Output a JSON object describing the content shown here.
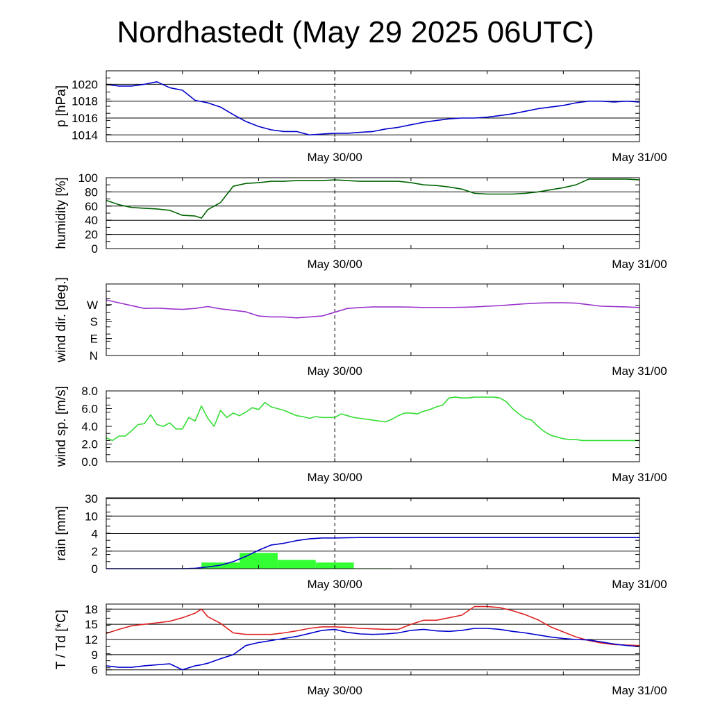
{
  "title": "Nordhastedt (May 29 2025 06UTC)",
  "chart_data": [
    {
      "type": "line",
      "ylabel": "p [hPa]",
      "ylim": [
        1013.2,
        1021.6
      ],
      "yticks": [
        1014,
        1016,
        1018,
        1020
      ],
      "ytick_labels": [
        "1014",
        "1016",
        "1018",
        "1020"
      ],
      "grid": true,
      "x": [
        0,
        1,
        2,
        3,
        4,
        5,
        6,
        7,
        8,
        9,
        10,
        11,
        12,
        13,
        14,
        15,
        16,
        17,
        18,
        19,
        20,
        21,
        22,
        23,
        24,
        25,
        26,
        27,
        28,
        29,
        30,
        31,
        32,
        33,
        34,
        35,
        36,
        37,
        38,
        39,
        40,
        41,
        42
      ],
      "series": [
        {
          "color": "#0000cc",
          "values": [
            1020.0,
            1019.8,
            1019.8,
            1020.0,
            1020.3,
            1019.6,
            1019.3,
            1018.1,
            1017.8,
            1017.3,
            1016.4,
            1015.6,
            1015.0,
            1014.6,
            1014.4,
            1014.4,
            1014.0,
            1014.1,
            1014.2,
            1014.2,
            1014.3,
            1014.4,
            1014.7,
            1014.9,
            1015.2,
            1015.5,
            1015.7,
            1015.9,
            1016.0,
            1016.0,
            1016.1,
            1016.3,
            1016.5,
            1016.8,
            1017.1,
            1017.3,
            1017.5,
            1017.8,
            1018.0,
            1018.0,
            1017.9,
            1018.0,
            1017.9
          ]
        }
      ],
      "x_ticks": [
        {
          "x": 18,
          "label": "May 30/00"
        },
        {
          "x": 42,
          "label": "May 31/00"
        }
      ],
      "vline_x": 18
    },
    {
      "type": "line",
      "ylabel": "humidity [%]",
      "ylim": [
        0,
        100
      ],
      "yticks": [
        0,
        20,
        40,
        60,
        80,
        100
      ],
      "ytick_labels": [
        "0",
        "20",
        "40",
        "60",
        "80",
        "100"
      ],
      "grid": true,
      "x": [
        0,
        1,
        2,
        3,
        4,
        5,
        6,
        7,
        7.5,
        8,
        9,
        10,
        11,
        12,
        13,
        14,
        15,
        16,
        17,
        18,
        19,
        20,
        21,
        22,
        23,
        24,
        25,
        26,
        27,
        28,
        29,
        30,
        31,
        32,
        33,
        34,
        35,
        36,
        37,
        38,
        39,
        40,
        41,
        42
      ],
      "series": [
        {
          "color": "#006400",
          "values": [
            68,
            62,
            58,
            57,
            56,
            54,
            47,
            46,
            43,
            55,
            65,
            88,
            92,
            93,
            95,
            95,
            96,
            96,
            96,
            97,
            96,
            95,
            95,
            95,
            95,
            93,
            90,
            89,
            87,
            84,
            78,
            77,
            77,
            77,
            78,
            80,
            83,
            86,
            90,
            98,
            98,
            98,
            98,
            97
          ]
        }
      ],
      "x_ticks": [
        {
          "x": 18,
          "label": "May 30/00"
        },
        {
          "x": 42,
          "label": "May 31/00"
        }
      ],
      "vline_x": 18
    },
    {
      "type": "line",
      "ylabel": "wind dir. [deg.]",
      "ylim": [
        0,
        380
      ],
      "yticks": [
        0,
        90,
        180,
        270
      ],
      "ytick_labels": [
        "N",
        "E",
        "S",
        "W"
      ],
      "grid": false,
      "x": [
        0,
        1,
        2,
        3,
        4,
        5,
        6,
        7,
        8,
        9,
        10,
        11,
        12,
        13,
        14,
        15,
        16,
        17,
        18,
        19,
        20,
        21,
        22,
        23,
        24,
        25,
        26,
        27,
        28,
        29,
        30,
        31,
        32,
        33,
        34,
        35,
        36,
        37,
        38,
        39,
        40,
        41,
        42
      ],
      "series": [
        {
          "color": "#9932cc",
          "values": [
            295,
            280,
            265,
            250,
            252,
            248,
            245,
            250,
            260,
            248,
            240,
            232,
            210,
            205,
            205,
            200,
            205,
            210,
            230,
            250,
            255,
            258,
            258,
            258,
            257,
            255,
            255,
            255,
            256,
            258,
            262,
            265,
            270,
            275,
            278,
            280,
            280,
            278,
            270,
            262,
            260,
            258,
            255
          ]
        }
      ],
      "x_ticks": [
        {
          "x": 18,
          "label": "May 30/00"
        },
        {
          "x": 42,
          "label": "May 31/00"
        }
      ],
      "vline_x": 18
    },
    {
      "type": "line",
      "ylabel": "wind sp. [m/s]",
      "ylim": [
        0,
        8
      ],
      "yticks": [
        0,
        2,
        4,
        6,
        8
      ],
      "ytick_labels": [
        "0.0",
        "2.0",
        "4.0",
        "6.0",
        "8.0"
      ],
      "grid": false,
      "x": [
        0,
        0.5,
        1,
        1.5,
        2,
        2.5,
        3,
        3.5,
        4,
        4.5,
        5,
        5.5,
        6,
        6.5,
        7,
        7.5,
        8,
        8.5,
        9,
        9.5,
        10,
        10.5,
        11,
        11.5,
        12,
        12.5,
        13,
        13.5,
        14,
        14.5,
        15,
        15.5,
        16,
        16.5,
        17,
        17.5,
        18,
        18.5,
        19,
        19.5,
        20,
        20.5,
        21,
        21.5,
        22,
        22.5,
        23,
        23.5,
        24,
        24.5,
        25,
        25.5,
        26,
        26.5,
        27,
        27.5,
        28,
        28.5,
        29,
        29.5,
        30,
        30.5,
        31,
        31.5,
        32,
        32.5,
        33,
        33.5,
        34,
        34.5,
        35,
        35.5,
        36,
        36.5,
        37,
        37.5,
        38,
        38.5,
        39,
        39.5,
        40,
        40.5,
        41,
        41.5,
        42
      ],
      "series": [
        {
          "color": "#33dd33",
          "values": [
            2.7,
            2.4,
            2.9,
            2.9,
            3.5,
            4.2,
            4.3,
            5.3,
            4.2,
            4.0,
            4.4,
            3.7,
            3.7,
            5.0,
            4.6,
            6.3,
            4.9,
            4.0,
            5.8,
            5.0,
            5.5,
            5.2,
            5.6,
            6.1,
            5.9,
            6.7,
            6.2,
            6.0,
            5.8,
            5.5,
            5.2,
            5.1,
            4.9,
            5.1,
            5.0,
            5.0,
            5.0,
            5.4,
            5.2,
            5.0,
            4.9,
            4.8,
            4.7,
            4.6,
            4.5,
            4.8,
            5.2,
            5.5,
            5.5,
            5.4,
            5.7,
            5.9,
            6.2,
            6.4,
            7.2,
            7.3,
            7.2,
            7.2,
            7.3,
            7.3,
            7.3,
            7.3,
            7.2,
            6.8,
            6.0,
            5.4,
            4.9,
            4.7,
            4.0,
            3.4,
            3.0,
            2.8,
            2.6,
            2.5,
            2.5,
            2.4,
            2.4,
            2.4,
            2.4,
            2.4,
            2.4,
            2.4,
            2.4,
            2.4,
            2.4
          ]
        }
      ],
      "x_ticks": [
        {
          "x": 18,
          "label": "May 30/00"
        },
        {
          "x": 42,
          "label": "May 31/00"
        }
      ],
      "vline_x": 18
    },
    {
      "type": "bar+line",
      "ylabel": "rain [mm]",
      "yticks": [
        0,
        2,
        4,
        10,
        30
      ],
      "ytick_labels": [
        "0",
        "2",
        "4",
        "10",
        "30"
      ],
      "ylim": [
        0,
        30
      ],
      "grid": true,
      "bars": [
        {
          "x0": 7.5,
          "x1": 10.5,
          "value": 0.7,
          "color": "#33ff33"
        },
        {
          "x0": 10.5,
          "x1": 13.5,
          "value": 1.8,
          "color": "#33ff33"
        },
        {
          "x0": 13.5,
          "x1": 16.5,
          "value": 1.0,
          "color": "#33ff33"
        },
        {
          "x0": 16.5,
          "x1": 19.5,
          "value": 0.7,
          "color": "#33ff33"
        },
        {
          "x0": 19.5,
          "x1": 22.5,
          "value": 0.05,
          "color": "#33ff33"
        }
      ],
      "x": [
        0,
        6,
        7,
        8,
        9,
        10,
        11,
        12,
        13,
        14,
        15,
        16,
        17,
        18,
        20,
        25,
        30,
        35,
        42
      ],
      "series": [
        {
          "color": "#0000cc",
          "values": [
            0,
            0,
            0.05,
            0.2,
            0.4,
            0.8,
            1.4,
            2.1,
            2.7,
            2.9,
            3.2,
            3.4,
            3.5,
            3.5,
            3.55,
            3.55,
            3.55,
            3.55,
            3.55
          ]
        }
      ],
      "x_ticks": [
        {
          "x": 18,
          "label": "May 30/00"
        },
        {
          "x": 42,
          "label": "May 31/00"
        }
      ],
      "vline_x": 18
    },
    {
      "type": "line",
      "ylabel": "T / Td [*C]",
      "ylim": [
        5,
        19
      ],
      "yticks": [
        6,
        9,
        12,
        15,
        18
      ],
      "ytick_labels": [
        "6",
        "9",
        "12",
        "15",
        "18"
      ],
      "grid": true,
      "x": [
        0,
        1,
        2,
        3,
        4,
        5,
        6,
        7,
        7.5,
        8,
        9,
        10,
        11,
        12,
        13,
        14,
        15,
        16,
        17,
        18,
        19,
        20,
        21,
        22,
        23,
        24,
        25,
        26,
        27,
        28,
        29,
        30,
        31,
        32,
        33,
        34,
        35,
        36,
        37,
        38,
        39,
        40,
        41,
        42
      ],
      "series": [
        {
          "name": "T",
          "color": "#dd2222",
          "values": [
            13.2,
            14.0,
            14.7,
            15.0,
            15.3,
            15.6,
            16.3,
            17.2,
            18.0,
            16.5,
            15.2,
            13.3,
            13.0,
            13.0,
            13.0,
            13.3,
            13.7,
            14.2,
            14.5,
            14.5,
            14.4,
            14.2,
            14.1,
            14.0,
            14.0,
            15.0,
            15.8,
            15.8,
            16.3,
            16.8,
            18.5,
            18.5,
            18.3,
            17.7,
            16.9,
            15.9,
            14.5,
            13.5,
            12.5,
            11.8,
            11.3,
            11.0,
            10.9,
            10.8
          ]
        },
        {
          "name": "Td",
          "color": "#0000cc",
          "values": [
            6.8,
            6.5,
            6.5,
            6.8,
            7.0,
            7.2,
            6.0,
            6.8,
            7.0,
            7.3,
            8.2,
            9.0,
            10.8,
            11.4,
            11.8,
            12.2,
            12.6,
            13.2,
            13.8,
            14.0,
            13.4,
            13.1,
            13.0,
            13.1,
            13.3,
            13.8,
            14.0,
            13.7,
            13.6,
            13.8,
            14.2,
            14.2,
            14.0,
            13.6,
            13.3,
            12.9,
            12.5,
            12.2,
            12.0,
            11.9,
            11.5,
            11.1,
            10.8,
            10.6
          ]
        }
      ],
      "x_ticks": [
        {
          "x": 18,
          "label": "May 30/00"
        },
        {
          "x": 42,
          "label": "May 31/00"
        }
      ],
      "vline_x": 18
    }
  ]
}
